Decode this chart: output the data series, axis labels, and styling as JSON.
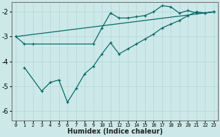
{
  "xlabel": "Humidex (Indice chaleur)",
  "background_color": "#cce8e8",
  "grid_color": "#b8d8d8",
  "line_color": "#006868",
  "xlim": [
    -0.5,
    23.5
  ],
  "ylim": [
    -6.4,
    -1.6
  ],
  "yticks": [
    -6,
    -5,
    -4,
    -3,
    -2
  ],
  "xticks": [
    0,
    1,
    2,
    3,
    4,
    5,
    6,
    7,
    8,
    9,
    10,
    11,
    12,
    13,
    14,
    15,
    16,
    17,
    18,
    19,
    20,
    21,
    22,
    23
  ],
  "curve1_x": [
    0,
    1,
    2,
    9,
    10,
    11,
    12,
    13,
    14,
    15,
    16,
    17,
    18,
    19,
    20,
    21,
    22,
    23
  ],
  "curve1_y": [
    -3.0,
    -3.3,
    -3.3,
    -3.3,
    -2.65,
    -2.05,
    -2.25,
    -2.25,
    -2.2,
    -2.15,
    -2.0,
    -1.75,
    -1.8,
    -2.05,
    -1.95,
    -2.05,
    -2.05,
    -2.0
  ],
  "curve2_x": [
    1,
    3,
    4,
    5,
    6,
    7,
    8,
    9,
    10,
    11,
    12,
    13,
    14,
    15,
    16,
    17,
    18,
    19,
    20,
    21,
    22,
    23
  ],
  "curve2_y": [
    -4.25,
    -5.2,
    -4.85,
    -4.75,
    -5.65,
    -5.1,
    -4.5,
    -4.2,
    -3.7,
    -3.25,
    -3.7,
    -3.5,
    -3.3,
    -3.1,
    -2.9,
    -2.65,
    -2.5,
    -2.35,
    -2.15,
    -2.0,
    -2.05,
    -2.0
  ],
  "ref_line_x": [
    0,
    23
  ],
  "ref_line_y": [
    -3.0,
    -2.0
  ],
  "xlabel_fontsize": 7,
  "xtick_fontsize": 5,
  "ytick_fontsize": 7
}
